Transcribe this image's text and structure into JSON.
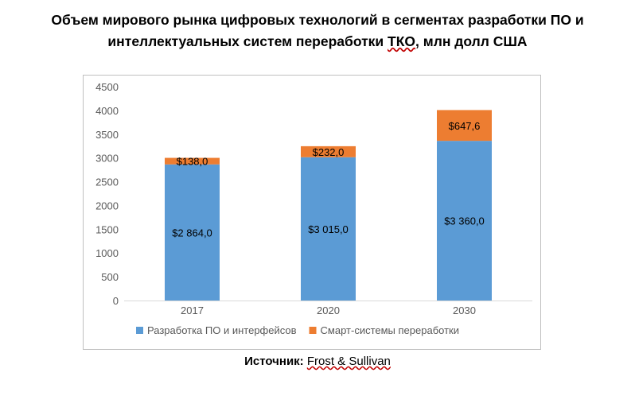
{
  "title": {
    "line1": "Объем мирового рынка цифровых технологий в сегментах разработки ПО и",
    "line2": "интеллектуальных систем переработки ТКО, млн долл США"
  },
  "source": {
    "label": "Источник:",
    "value": "Frost & Sullivan"
  },
  "colors": {
    "series1": "#5b9bd5",
    "series2": "#ed7d31"
  },
  "chart_data": {
    "type": "bar",
    "stacked": true,
    "categories": [
      "2017",
      "2020",
      "2030"
    ],
    "series": [
      {
        "name": "Разработка ПО и интерфейсов",
        "values": [
          2864.0,
          3015.0,
          3360.0
        ],
        "labels": [
          "$2 864,0",
          "$3 015,0",
          "$3 360,0"
        ]
      },
      {
        "name": "Смарт-системы переработки",
        "values": [
          138.0,
          232.0,
          647.6
        ],
        "labels": [
          "$138,0",
          "$232,0",
          "$647,6"
        ]
      }
    ],
    "y_ticks": [
      "0",
      "500",
      "1000",
      "1500",
      "2000",
      "2500",
      "3000",
      "3500",
      "4000",
      "4500"
    ],
    "ylim": [
      0,
      4500
    ],
    "legend_position": "bottom",
    "grid": false
  }
}
